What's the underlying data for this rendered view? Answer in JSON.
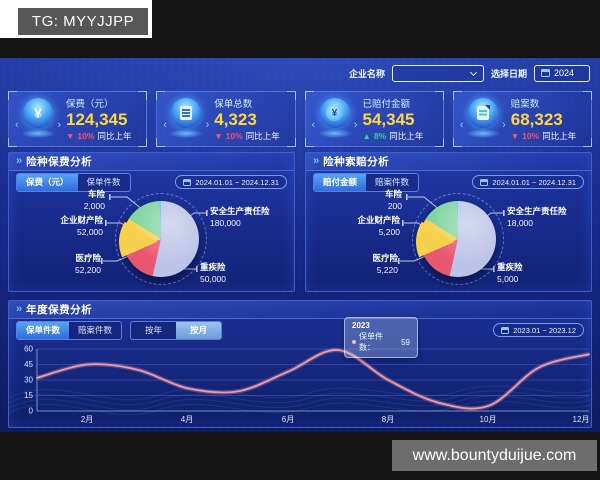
{
  "watermarks": {
    "top": "TG: MYYJJPP",
    "bottom": "www.bountyduijue.com"
  },
  "ui": {
    "panel_marker": "»",
    "bracket_left": "‹",
    "bracket_right": "›",
    "yuan_glyph": "¥"
  },
  "filters": {
    "company_label": "企业名称",
    "company_value": "",
    "date_label": "选择日期",
    "date_value": "2024"
  },
  "kpis": [
    {
      "title": "保费（元）",
      "value": "124,345",
      "arrow": "▼",
      "pct": "10%",
      "suffix": "同比上年",
      "trend": "down",
      "icon": "premium-yuan-icon"
    },
    {
      "title": "保单总数",
      "value": "4,323",
      "arrow": "▼",
      "pct": "10%",
      "suffix": "同比上年",
      "trend": "down",
      "icon": "policy-doc-icon"
    },
    {
      "title": "已赔付金额",
      "value": "54,345",
      "arrow": "▲",
      "pct": "8%",
      "suffix": "同比上年",
      "trend": "up",
      "icon": "money-bag-icon"
    },
    {
      "title": "赔案数",
      "value": "68,323",
      "arrow": "▼",
      "pct": "10%",
      "suffix": "同比上年",
      "trend": "down",
      "icon": "claim-file-icon"
    }
  ],
  "premium_panel": {
    "title": "险种保费分析",
    "tabs": [
      "保费（元）",
      "保单件数"
    ],
    "active_tab": 0,
    "date_range": "2024.01.01 ~ 2024.12.31"
  },
  "claims_panel": {
    "title": "险种索赔分析",
    "tabs": [
      "赔付金额",
      "赔案件数"
    ],
    "active_tab": 0,
    "date_range": "2024.01.01 ~ 2024.12.31"
  },
  "annual_panel": {
    "title": "年度保费分析",
    "metric_tabs": [
      "保单件数",
      "赔案件数"
    ],
    "metric_active": 0,
    "period_tabs": [
      "按年",
      "按月"
    ],
    "period_active": 1,
    "date_range": "2023.01 ~ 2023.12",
    "tooltip": {
      "title": "2023",
      "label": "保单件数：",
      "value": "59"
    }
  },
  "chart_data": [
    {
      "type": "pie",
      "title": "险种保费分析",
      "legend_position": "callout-labels",
      "slices": [
        {
          "label": "车险",
          "value": "2,000",
          "color": "#56c8ec"
        },
        {
          "label": "企业财产险",
          "value": "52,000",
          "color": "#7fd4a0"
        },
        {
          "label": "医疗险",
          "value": "52,200",
          "color": "#f7d14e"
        },
        {
          "label": "安全生产责任险",
          "value": "180,000",
          "color": "#bcc3e6"
        },
        {
          "label": "重疾险",
          "value": "50,000",
          "color": "#e8566f"
        }
      ],
      "values": [
        2000,
        52000,
        52200,
        180000,
        50000
      ]
    },
    {
      "type": "pie",
      "title": "险种索赔分析",
      "legend_position": "callout-labels",
      "slices": [
        {
          "label": "车险",
          "value": "200",
          "color": "#56c8ec"
        },
        {
          "label": "企业财产险",
          "value": "5,200",
          "color": "#7fd4a0"
        },
        {
          "label": "医疗险",
          "value": "5,220",
          "color": "#f7d14e"
        },
        {
          "label": "安全生产责任险",
          "value": "18,000",
          "color": "#bcc3e6"
        },
        {
          "label": "重疾险",
          "value": "5,000",
          "color": "#e8566f"
        }
      ],
      "values": [
        200,
        5200,
        5220,
        18000,
        5000
      ]
    },
    {
      "type": "line",
      "title": "年度保费分析",
      "x": [
        "1月",
        "2月",
        "3月",
        "4月",
        "5月",
        "6月",
        "7月",
        "8月",
        "9月",
        "10月",
        "11月",
        "12月"
      ],
      "x_ticks_shown": [
        "2月",
        "4月",
        "6月",
        "8月",
        "10月",
        "12月"
      ],
      "series": [
        {
          "name": "保单件数",
          "values": [
            32,
            45,
            40,
            22,
            19,
            38,
            59,
            30,
            8,
            5,
            42,
            55
          ]
        }
      ],
      "ylim": [
        0,
        60
      ],
      "yticks": [
        0,
        15,
        30,
        45,
        60
      ],
      "grid": true,
      "line_color": "#f29aa6",
      "highlight_point": {
        "x": "7月",
        "value": 59
      }
    }
  ]
}
